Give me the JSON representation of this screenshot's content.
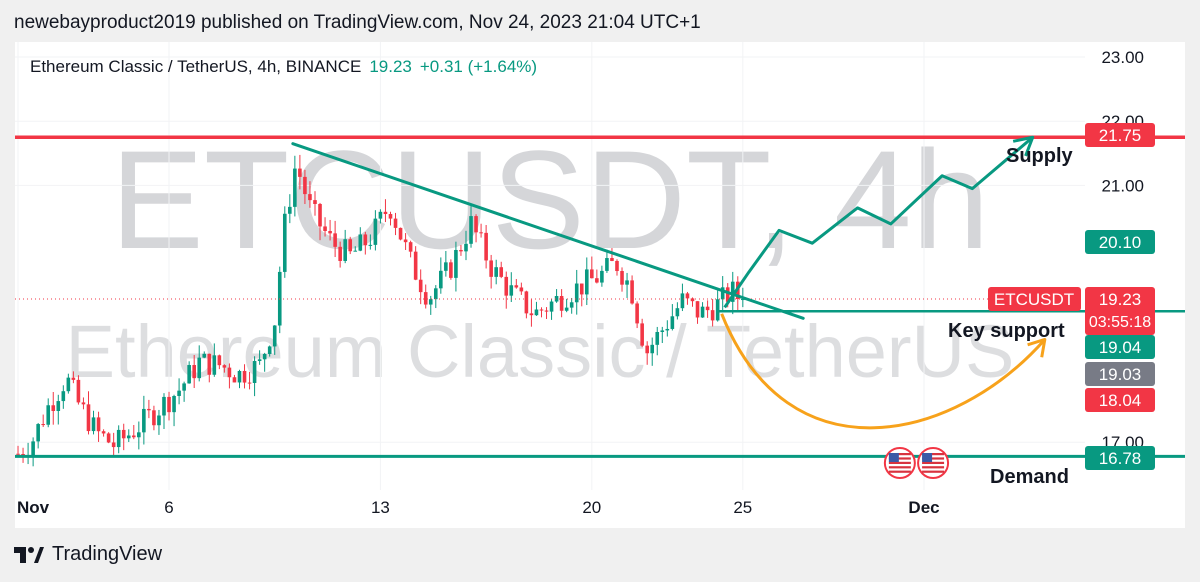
{
  "header": {
    "published": "newebayproduct2019 published on TradingView.com, Nov 24, 2023 21:04 UTC+1"
  },
  "legend": {
    "symbol": "Ethereum Classic / TetherUS, 4h, BINANCE",
    "price": "19.23",
    "change": "+0.31 (+1.64%)"
  },
  "watermark": {
    "line1": "ETCUSDT, 4h",
    "line2": "Ethereum Classic / TetherUS"
  },
  "footer": {
    "brand": "TradingView"
  },
  "colors": {
    "up": "#089981",
    "down": "#f23645",
    "supply_line": "#f23645",
    "demand_line": "#089981",
    "trend_line": "#089981",
    "projection": "#089981",
    "curve": "#f7a21b",
    "gray_label": "#787b86"
  },
  "chart_data": {
    "type": "candlestick",
    "symbol": "ETCUSDT",
    "interval": "4h",
    "exchange": "BINANCE",
    "ylim": [
      16.5,
      23.2
    ],
    "y_ticks": [
      "23.00",
      "22.00",
      "21.00",
      "17.00"
    ],
    "y_tick_values": [
      23,
      22,
      21,
      17
    ],
    "x_ticks": [
      "Nov",
      "6",
      "13",
      "20",
      "25",
      "Dec"
    ],
    "x_tick_days": [
      1,
      6,
      13,
      20,
      25,
      31
    ],
    "x_range_days": [
      0.9,
      35.6
    ],
    "candles_end_day": 25.0,
    "price_path": [
      [
        1.0,
        16.82
      ],
      [
        1.5,
        17.05
      ],
      [
        2.0,
        17.55
      ],
      [
        2.6,
        18.0
      ],
      [
        3.0,
        17.6
      ],
      [
        3.6,
        17.15
      ],
      [
        4.2,
        16.95
      ],
      [
        5.0,
        17.25
      ],
      [
        5.7,
        17.55
      ],
      [
        6.3,
        17.8
      ],
      [
        7.0,
        18.25
      ],
      [
        7.7,
        18.2
      ],
      [
        8.3,
        18.05
      ],
      [
        9.0,
        18.2
      ],
      [
        9.5,
        18.9
      ],
      [
        9.8,
        20.3
      ],
      [
        10.2,
        21.35
      ],
      [
        10.7,
        20.6
      ],
      [
        11.4,
        20.1
      ],
      [
        12.0,
        19.9
      ],
      [
        12.7,
        20.2
      ],
      [
        13.3,
        20.7
      ],
      [
        14.0,
        19.8
      ],
      [
        14.6,
        19.25
      ],
      [
        15.3,
        19.7
      ],
      [
        16.0,
        20.4
      ],
      [
        16.7,
        19.7
      ],
      [
        17.4,
        19.3
      ],
      [
        18.1,
        19.0
      ],
      [
        18.8,
        19.2
      ],
      [
        19.5,
        19.4
      ],
      [
        20.3,
        19.6
      ],
      [
        20.8,
        19.8
      ],
      [
        21.3,
        19.4
      ],
      [
        21.8,
        18.4
      ],
      [
        22.4,
        18.8
      ],
      [
        23.0,
        19.2
      ],
      [
        23.6,
        19.0
      ],
      [
        24.2,
        19.15
      ],
      [
        24.6,
        19.35
      ],
      [
        25.0,
        19.23
      ]
    ],
    "high": 21.8,
    "low": 16.6,
    "current_price": 19.23,
    "countdown": "03:55:18",
    "price_labels": [
      {
        "text": "21.75",
        "value": 21.75,
        "color": "#f23645"
      },
      {
        "text": "20.10",
        "value": 20.1,
        "color": "#089981"
      },
      {
        "text": "19.23",
        "value": 19.23,
        "color": "#f23645"
      },
      {
        "text": "19.04",
        "value": 19.04,
        "color": "#089981"
      },
      {
        "text": "19.03",
        "value": 19.03,
        "color": "#787b86"
      },
      {
        "text": "18.04",
        "value": 18.04,
        "color": "#f23645"
      },
      {
        "text": "16.78",
        "value": 16.78,
        "color": "#089981"
      }
    ],
    "symbol_tag": "ETCUSDT",
    "levels": [
      {
        "name": "Supply",
        "value": 21.75,
        "color": "#f23645"
      },
      {
        "name": "Key support",
        "value": 19.04,
        "color": "#089981"
      },
      {
        "name": "Demand",
        "value": 16.78,
        "color": "#089981"
      }
    ],
    "trendline": [
      [
        10.1,
        21.65
      ],
      [
        27.0,
        18.93
      ]
    ],
    "projection_path": [
      [
        24.4,
        19.1
      ],
      [
        25.2,
        19.65
      ],
      [
        26.2,
        20.3
      ],
      [
        27.3,
        20.1
      ],
      [
        28.8,
        20.65
      ],
      [
        29.9,
        20.4
      ],
      [
        31.6,
        21.15
      ],
      [
        32.6,
        20.95
      ],
      [
        34.6,
        21.75
      ]
    ],
    "curve_path": {
      "start": [
        24.3,
        19.0
      ],
      "control1": [
        26.5,
        16.4
      ],
      "control2": [
        32.0,
        17.0
      ],
      "end": [
        35.0,
        18.6
      ]
    },
    "events_day": [
      30.2,
      31.3
    ]
  }
}
